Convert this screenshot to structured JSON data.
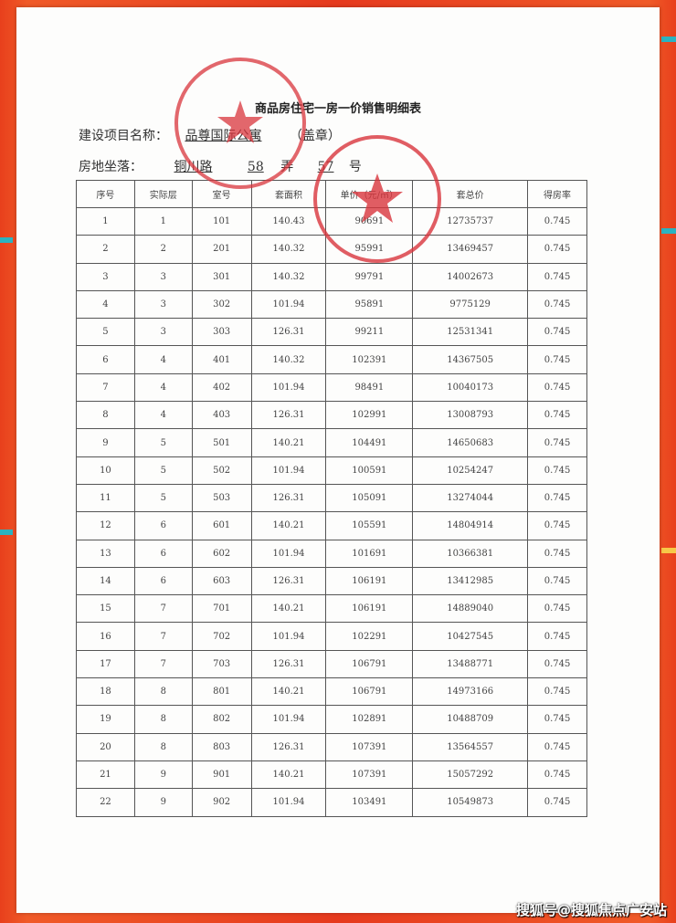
{
  "document": {
    "title": "商品房住宅一房一价销售明细表",
    "project_label": "建设项目名称：",
    "project_name": "品尊国际公寓",
    "seal_note": "（盖章）",
    "location_label": "房地坐落：",
    "road": "铜川路",
    "lane_no": "58",
    "lane_label": "弄",
    "house_no": "57",
    "house_label": "号"
  },
  "table": {
    "headers": [
      "序号",
      "实际层",
      "室号",
      "套面积",
      "单价（元/㎡）",
      "套总价",
      "得房率"
    ],
    "rows": [
      [
        "1",
        "1",
        "101",
        "140.43",
        "90691",
        "12735737",
        "0.745"
      ],
      [
        "2",
        "2",
        "201",
        "140.32",
        "95991",
        "13469457",
        "0.745"
      ],
      [
        "3",
        "3",
        "301",
        "140.32",
        "99791",
        "14002673",
        "0.745"
      ],
      [
        "4",
        "3",
        "302",
        "101.94",
        "95891",
        "9775129",
        "0.745"
      ],
      [
        "5",
        "3",
        "303",
        "126.31",
        "99211",
        "12531341",
        "0.745"
      ],
      [
        "6",
        "4",
        "401",
        "140.32",
        "102391",
        "14367505",
        "0.745"
      ],
      [
        "7",
        "4",
        "402",
        "101.94",
        "98491",
        "10040173",
        "0.745"
      ],
      [
        "8",
        "4",
        "403",
        "126.31",
        "102991",
        "13008793",
        "0.745"
      ],
      [
        "9",
        "5",
        "501",
        "140.21",
        "104491",
        "14650683",
        "0.745"
      ],
      [
        "10",
        "5",
        "502",
        "101.94",
        "100591",
        "10254247",
        "0.745"
      ],
      [
        "11",
        "5",
        "503",
        "126.31",
        "105091",
        "13274044",
        "0.745"
      ],
      [
        "12",
        "6",
        "601",
        "140.21",
        "105591",
        "14804914",
        "0.745"
      ],
      [
        "13",
        "6",
        "602",
        "101.94",
        "101691",
        "10366381",
        "0.745"
      ],
      [
        "14",
        "6",
        "603",
        "126.31",
        "106191",
        "13412985",
        "0.745"
      ],
      [
        "15",
        "7",
        "701",
        "140.21",
        "106191",
        "14889040",
        "0.745"
      ],
      [
        "16",
        "7",
        "702",
        "101.94",
        "102291",
        "10427545",
        "0.745"
      ],
      [
        "17",
        "7",
        "703",
        "126.31",
        "106791",
        "13488771",
        "0.745"
      ],
      [
        "18",
        "8",
        "801",
        "140.21",
        "106791",
        "14973166",
        "0.745"
      ],
      [
        "19",
        "8",
        "802",
        "101.94",
        "102891",
        "10488709",
        "0.745"
      ],
      [
        "20",
        "8",
        "803",
        "126.31",
        "107391",
        "13564557",
        "0.745"
      ],
      [
        "21",
        "9",
        "901",
        "140.21",
        "107391",
        "15057292",
        "0.745"
      ],
      [
        "22",
        "9",
        "902",
        "101.94",
        "103491",
        "10549873",
        "0.745"
      ]
    ]
  },
  "watermark": "搜狐号@搜狐焦点广安站",
  "colors": {
    "background": "#e8401c",
    "stamp": "#d8343c"
  }
}
